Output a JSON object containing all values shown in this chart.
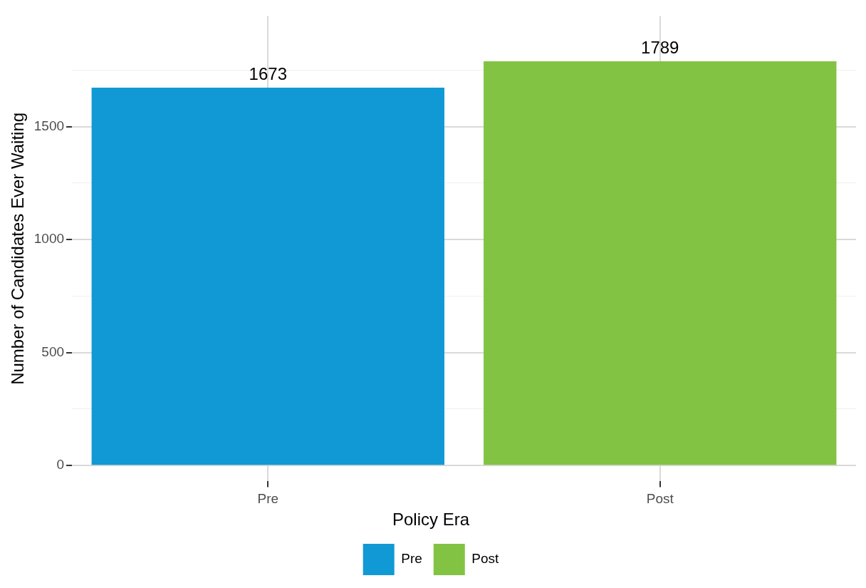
{
  "chart_data": {
    "type": "bar",
    "ylabel": "Number of Candidates Ever Waiting",
    "legend_title": "Policy Era",
    "categories": [
      "Pre",
      "Post"
    ],
    "series": [
      {
        "name": "Pre",
        "color": "#1199d6",
        "values": [
          1673,
          null
        ]
      },
      {
        "name": "Post",
        "color": "#83c343",
        "values": [
          null,
          1789
        ]
      }
    ],
    "ylim": [
      -70,
      1990
    ],
    "yticks": [
      0,
      {
        "value": 250,
        "label": null
      },
      500,
      {
        "value": 750,
        "label": null
      },
      1000,
      {
        "value": 1250,
        "label": null
      },
      1500,
      {
        "value": 1750,
        "label": null
      }
    ],
    "data_labels": true,
    "grid": true,
    "legend": "bottom"
  }
}
